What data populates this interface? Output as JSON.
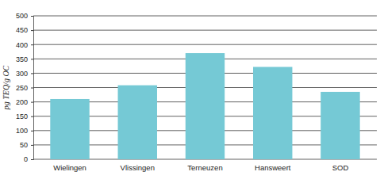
{
  "chart_data": {
    "type": "bar",
    "y_label": "pg TEQ/g OC",
    "categories": [
      "Wielingen",
      "Vlissingen",
      "Terneuzen",
      "Hansweert",
      "SOD"
    ],
    "values": [
      210,
      258,
      370,
      322,
      235
    ],
    "color": "#75c9d5",
    "ylim": [
      0,
      500
    ],
    "yticks": [
      0,
      50,
      100,
      150,
      200,
      250,
      300,
      350,
      400,
      450,
      500
    ],
    "grid": true
  }
}
